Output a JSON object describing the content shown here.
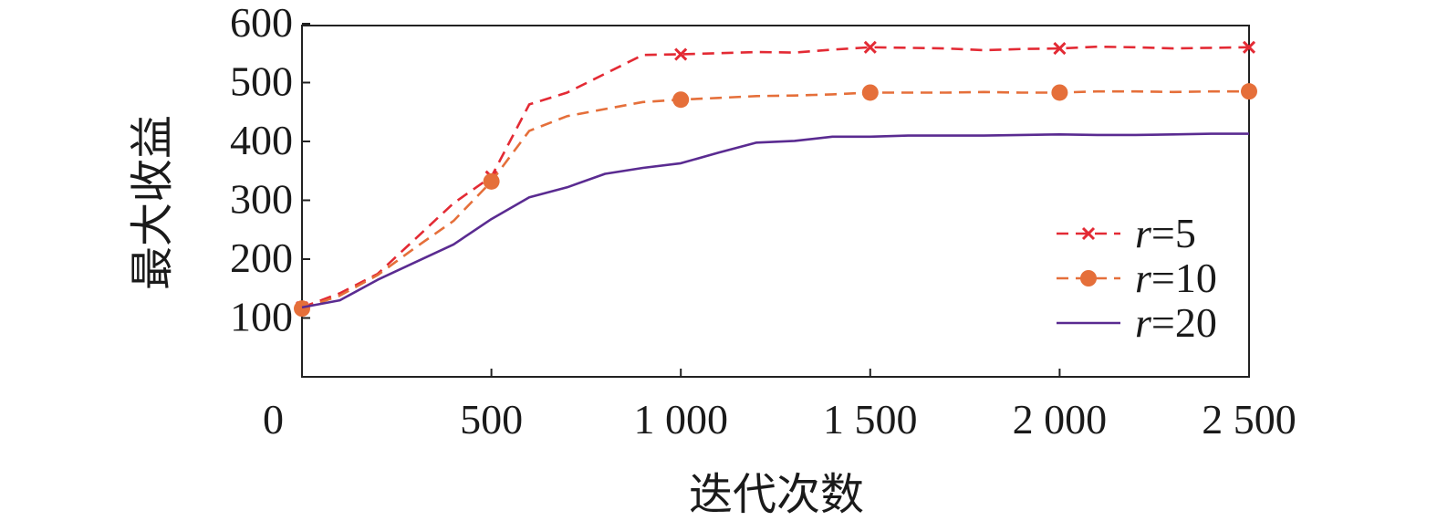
{
  "chart_data": {
    "type": "line",
    "xlabel": "迭代次数",
    "ylabel": "最大收益",
    "xlim": [
      0,
      2500
    ],
    "ylim": [
      0,
      600
    ],
    "x_ticks": [
      {
        "value": 0,
        "label": "0"
      },
      {
        "value": 500,
        "label": "500"
      },
      {
        "value": 1000,
        "label": "1 000"
      },
      {
        "value": 1500,
        "label": "1 500"
      },
      {
        "value": 2000,
        "label": "2 000"
      },
      {
        "value": 2500,
        "label": "2 500"
      }
    ],
    "y_ticks": [
      {
        "value": 100,
        "label": "100"
      },
      {
        "value": 200,
        "label": "200"
      },
      {
        "value": 300,
        "label": "300"
      },
      {
        "value": 400,
        "label": "400"
      },
      {
        "value": 500,
        "label": "500"
      },
      {
        "value": 600,
        "label": "600"
      }
    ],
    "legend_position": "bottom-right",
    "series": [
      {
        "name": "r=5",
        "name_italic": "r",
        "name_rest": "=5",
        "color": "#e32a34",
        "dash": "dashed",
        "marker": "x",
        "marker_x": [
          0,
          500,
          1000,
          1500,
          2000,
          2500
        ],
        "x": [
          0,
          100,
          200,
          300,
          400,
          500,
          600,
          700,
          800,
          900,
          1000,
          1100,
          1200,
          1300,
          1400,
          1500,
          1600,
          1700,
          1800,
          1900,
          2000,
          2100,
          2200,
          2300,
          2400,
          2500
        ],
        "values": [
          118,
          142,
          175,
          235,
          295,
          340,
          463,
          483,
          515,
          547,
          548,
          550,
          552,
          551,
          556,
          560,
          559,
          558,
          555,
          557,
          558,
          561,
          560,
          558,
          559,
          560
        ]
      },
      {
        "name": "r=10",
        "name_italic": "r",
        "name_rest": "=10",
        "color": "#e56f3a",
        "dash": "dashed",
        "marker": "circle",
        "marker_x": [
          0,
          500,
          1000,
          1500,
          2000,
          2500
        ],
        "x": [
          0,
          100,
          200,
          300,
          400,
          500,
          600,
          700,
          800,
          900,
          1000,
          1100,
          1200,
          1300,
          1400,
          1500,
          1600,
          1700,
          1800,
          1900,
          2000,
          2100,
          2200,
          2300,
          2400,
          2500
        ],
        "values": [
          116,
          138,
          173,
          220,
          265,
          332,
          418,
          443,
          455,
          467,
          471,
          474,
          477,
          478,
          480,
          483,
          483,
          483,
          484,
          483,
          483,
          485,
          485,
          484,
          485,
          485
        ]
      },
      {
        "name": "r=20",
        "name_italic": "r",
        "name_rest": "=20",
        "color": "#5a2b91",
        "dash": "solid",
        "marker": "none",
        "marker_x": [],
        "x": [
          0,
          100,
          200,
          300,
          400,
          500,
          600,
          700,
          800,
          900,
          1000,
          1100,
          1200,
          1300,
          1400,
          1500,
          1600,
          1700,
          1800,
          1900,
          2000,
          2100,
          2200,
          2300,
          2400,
          2500
        ],
        "values": [
          118,
          130,
          165,
          195,
          225,
          268,
          305,
          322,
          345,
          355,
          363,
          381,
          398,
          401,
          408,
          408,
          410,
          410,
          410,
          411,
          412,
          411,
          411,
          412,
          413,
          413
        ]
      }
    ]
  }
}
